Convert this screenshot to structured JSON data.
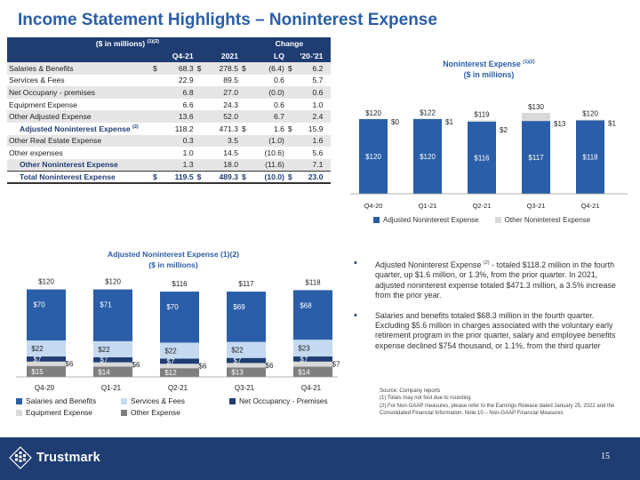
{
  "title": "Income Statement Highlights – Noninterest Expense",
  "table": {
    "header_label": "($ in millions)",
    "header_sup": "(1)(2)",
    "change_label": "Change",
    "columns": [
      "Q4-21",
      "2021",
      "LQ",
      "'20-'21"
    ],
    "rows": [
      {
        "label": "Salaries & Benefits",
        "sup": "",
        "cur": "$",
        "q4": "68.3",
        "c2": "$",
        "y": "278.5",
        "c3": "$",
        "lq": "(6.4)",
        "c4": "$",
        "yy": "6.2",
        "style": "alt"
      },
      {
        "label": "Services & Fees",
        "sup": "",
        "cur": "",
        "q4": "22.9",
        "c2": "",
        "y": "89.5",
        "c3": "",
        "lq": "0.6",
        "c4": "",
        "yy": "5.7",
        "style": ""
      },
      {
        "label": "Net Occupany - premises",
        "sup": "",
        "cur": "",
        "q4": "6.8",
        "c2": "",
        "y": "27.0",
        "c3": "",
        "lq": "(0.0)",
        "c4": "",
        "yy": "0.6",
        "style": "alt"
      },
      {
        "label": "Equipment Expense",
        "sup": "",
        "cur": "",
        "q4": "6.6",
        "c2": "",
        "y": "24.3",
        "c3": "",
        "lq": "0.6",
        "c4": "",
        "yy": "1.0",
        "style": ""
      },
      {
        "label": "Other Adjusted Expense",
        "sup": "",
        "cur": "",
        "q4": "13.6",
        "c2": "",
        "y": "52.0",
        "c3": "",
        "lq": "6.7",
        "c4": "",
        "yy": "2.4",
        "style": "alt"
      },
      {
        "label": "Adjusted Noninterest Expense",
        "sup": "(2)",
        "cur": "",
        "q4": "118.2",
        "c2": "",
        "y": "471.3",
        "c3": "$",
        "lq": "1.6",
        "c4": "$",
        "yy": "15.9",
        "style": "indent"
      },
      {
        "label": "Other Real Estate Expense",
        "sup": "",
        "cur": "",
        "q4": "0.3",
        "c2": "",
        "y": "3.5",
        "c3": "",
        "lq": "(1.0)",
        "c4": "",
        "yy": "1.6",
        "style": "alt"
      },
      {
        "label": "Other expenses",
        "sup": "",
        "cur": "",
        "q4": "1.0",
        "c2": "",
        "y": "14.5",
        "c3": "",
        "lq": "(10.6)",
        "c4": "",
        "yy": "5.6",
        "style": ""
      },
      {
        "label": "Other Noninterest Expense",
        "sup": "",
        "cur": "",
        "q4": "1.3",
        "c2": "",
        "y": "18.0",
        "c3": "",
        "lq": "(11.6)",
        "c4": "",
        "yy": "7.1",
        "style": "alt-indent"
      },
      {
        "label": "Total Noninterest Expense",
        "sup": "",
        "cur": "$",
        "q4": "119.5",
        "c2": "$",
        "y": "489.3",
        "c3": "$",
        "lq": "(10.0)",
        "c4": "$",
        "yy": "23.0",
        "style": "total"
      }
    ]
  },
  "bullets": [
    {
      "pre": "Adjusted Noninterest Expense ",
      "sup": "(2)",
      "post": "  - totaled $118.2 million in the fourth quarter, up $1.6 million, or 1.3%,  from the prior quarter. In 2021, adjusted noninterest expense totaled $471.3 million, a 3.5% increase from the prior year."
    },
    {
      "pre": "Salaries and benefits totaled $68.3 million in the fourth quarter. Excluding $5.6 million in charges associated with the voluntary early retirement program in the prior quarter, salary and employee benefits expense declined $754 thousand, or 1.1%, from the third quarter",
      "sup": "",
      "post": ""
    }
  ],
  "source": {
    "line1": "Source: Company reports",
    "line2": "(1) Totals may not foot due to rounding",
    "line3": "(2) For Non-GAAP measures, please refer to the Earnings Release dated January  25, 2022 and the Consolidated Financial Information, Note 10 – Non-GAAP Financial Measures"
  },
  "footer": {
    "company": "Trustmark",
    "page": "15"
  },
  "chart_data": [
    {
      "type": "bar",
      "stacked": true,
      "title": "Noninterest Expense",
      "title_sup": "(1)(2)",
      "subtitle": "($ in millions)",
      "categories": [
        "Q4-20",
        "Q1-21",
        "Q2-21",
        "Q3-21",
        "Q4-21"
      ],
      "series": [
        {
          "name": "Adjusted Noninterest Expense",
          "values": [
            120,
            120,
            116,
            117,
            118
          ],
          "labels": [
            "$120",
            "$120",
            "$116",
            "$117",
            "$118"
          ],
          "color": "#2a5ea8"
        },
        {
          "name": "Other Noninterest Expense",
          "values": [
            0,
            1,
            2,
            13,
            1
          ],
          "labels": [
            "$0",
            "$1",
            "$2",
            "$13",
            "$1"
          ],
          "color": "#d9d9d9"
        }
      ],
      "totals": [
        "$120",
        "$122",
        "$119",
        "$130",
        "$120"
      ],
      "legend": "bottom"
    },
    {
      "type": "bar",
      "stacked": true,
      "title": "Adjusted Noninterest Expense (1)(2)",
      "subtitle": "($ in millions)",
      "categories": [
        "Q4-20",
        "Q1-21",
        "Q2-21",
        "Q3-21",
        "Q4-21"
      ],
      "series": [
        {
          "name": "Other Expense",
          "values": [
            15,
            14,
            12,
            13,
            14
          ],
          "labels": [
            "$15",
            "$14",
            "$12",
            "$13",
            "$14"
          ],
          "color": "#7f7f7f"
        },
        {
          "name": "Equipment Expense",
          "values": [
            6,
            6,
            6,
            6,
            7
          ],
          "labels": [
            "$6",
            "$6",
            "$6",
            "$6",
            "$7"
          ],
          "color": "#d9d9d9"
        },
        {
          "name": "Net Occupancy - Premises",
          "values": [
            7,
            7,
            7,
            7,
            7
          ],
          "labels": [
            "$7",
            "$7",
            "$7",
            "$7",
            "$7"
          ],
          "color": "#1f3d73"
        },
        {
          "name": "Services & Fees",
          "values": [
            22,
            22,
            22,
            22,
            23
          ],
          "labels": [
            "$22",
            "$22",
            "$22",
            "$22",
            "$23"
          ],
          "color": "#c5d9f1"
        },
        {
          "name": "Salaries and Benefits",
          "values": [
            70,
            71,
            70,
            69,
            68
          ],
          "labels": [
            "$70",
            "$71",
            "$70",
            "$69",
            "$68"
          ],
          "color": "#2a5ea8"
        }
      ],
      "totals": [
        "$120",
        "$120",
        "$116",
        "$117",
        "$118"
      ],
      "legend_order": [
        "Salaries and Benefits",
        "Services & Fees",
        "Net Occupancy - Premises",
        "Equipment Expense",
        "Other Expense"
      ],
      "legend": "bottom"
    }
  ]
}
